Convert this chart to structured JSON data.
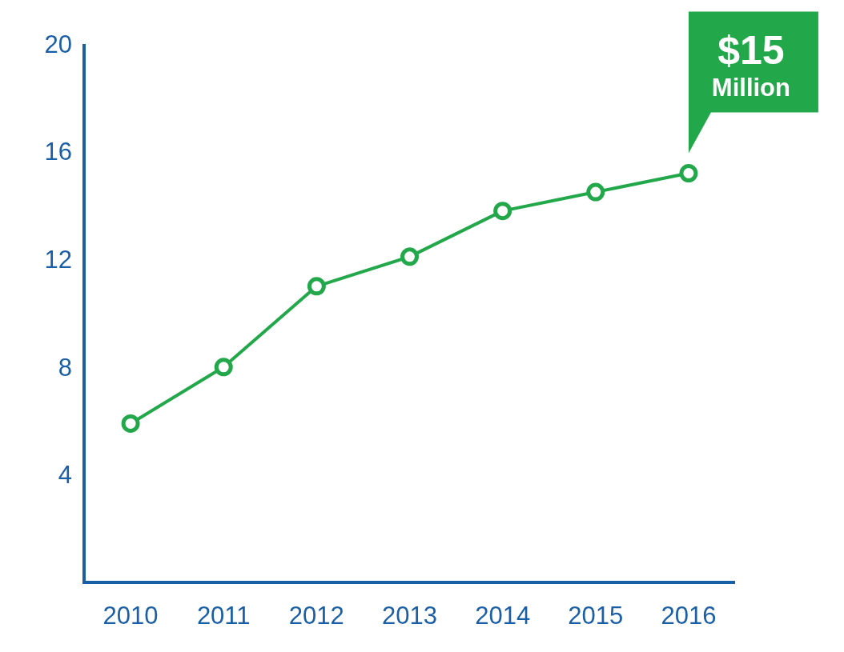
{
  "chart_data": {
    "type": "line",
    "categories": [
      "2010",
      "2011",
      "2012",
      "2013",
      "2014",
      "2015",
      "2016"
    ],
    "series": [
      {
        "color": "#22a84a",
        "values": [
          5.9,
          8.0,
          11.0,
          12.1,
          13.8,
          14.5,
          15.2
        ]
      }
    ],
    "ylim": [
      0,
      20
    ],
    "yticks": [
      4,
      8,
      12,
      16,
      20
    ],
    "marker": "circle",
    "annotations": [
      {
        "text": "$15 Million",
        "x": "2016",
        "y": 15.2
      }
    ]
  }
}
